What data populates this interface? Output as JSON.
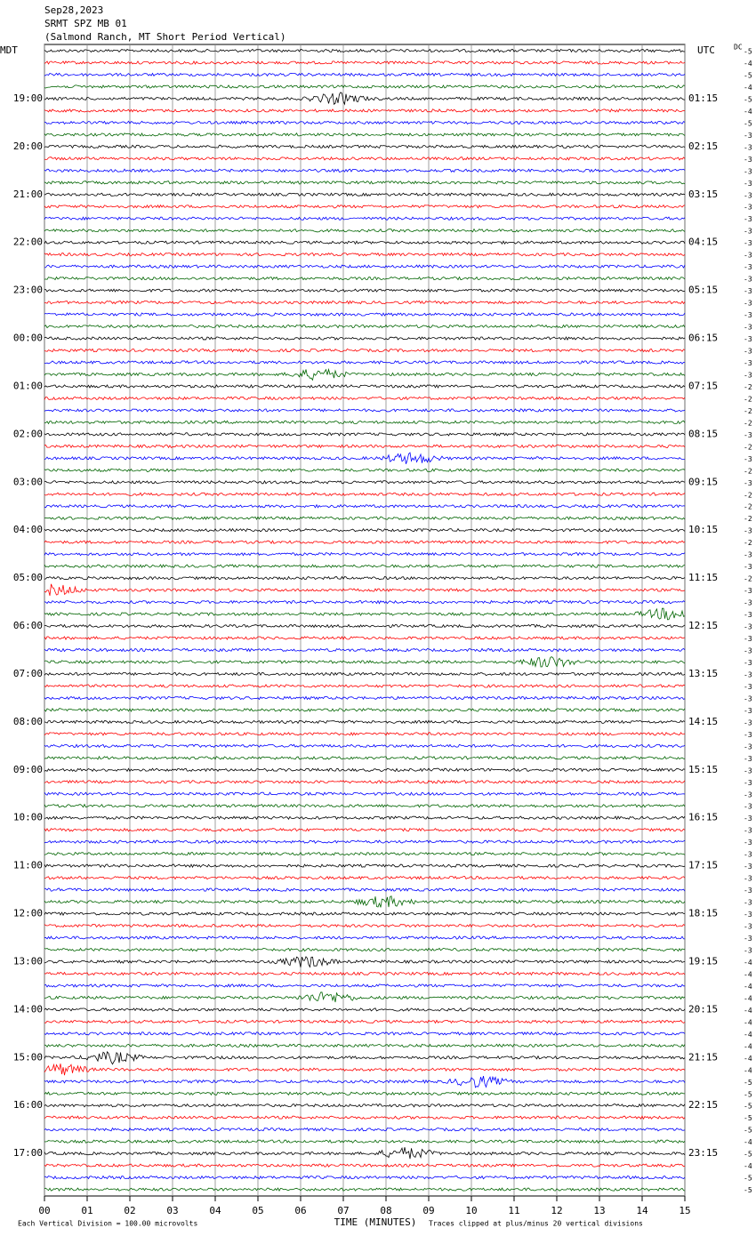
{
  "chart_data": {
    "type": "helicorder",
    "title": [
      "Sep28,2023",
      "SRMT SPZ MB 01",
      "(Salmond Ranch, MT Short Period Vertical)"
    ],
    "left_zone": "MDT",
    "right_zone": "UTC",
    "dc_label": "DC",
    "left_times": [
      "19:00",
      "20:00",
      "21:00",
      "22:00",
      "23:00",
      "00:00",
      "01:00",
      "02:00",
      "03:00",
      "04:00",
      "05:00",
      "06:00",
      "07:00",
      "08:00",
      "09:00",
      "10:00",
      "11:00",
      "12:00",
      "13:00",
      "14:00",
      "15:00",
      "16:00",
      "17:00"
    ],
    "right_times": [
      "01:15",
      "02:15",
      "03:15",
      "04:15",
      "05:15",
      "06:15",
      "07:15",
      "08:15",
      "09:15",
      "10:15",
      "11:15",
      "12:15",
      "13:15",
      "14:15",
      "15:15",
      "16:15",
      "17:15",
      "18:15",
      "19:15",
      "20:15",
      "21:15",
      "22:15",
      "23:15"
    ],
    "trace_colors": [
      "#000000",
      "#ff0000",
      "#0000ff",
      "#006400"
    ],
    "dc_offsets": [
      -5,
      -4,
      -5,
      -4,
      -5,
      -4,
      -5,
      -3,
      -3,
      -3,
      -3,
      -3,
      -3,
      -3,
      -3,
      -3,
      -3,
      -3,
      -3,
      -3,
      -3,
      -3,
      -3,
      -3,
      -3,
      -3,
      -3,
      -3,
      -2,
      -2,
      -2,
      -2,
      -3,
      -2,
      -3,
      -2,
      -3,
      -2,
      -2,
      -2,
      -3,
      -2,
      -3,
      -3,
      -2,
      -3,
      -3,
      -3,
      -3,
      -3,
      -3,
      -3,
      -3,
      -3,
      -3,
      -3,
      -3,
      -3,
      -3,
      -3,
      -3,
      -3,
      -3,
      -3,
      -3,
      -3,
      -3,
      -3,
      -3,
      -3,
      -3,
      -3,
      -3,
      -3,
      -3,
      -3,
      -4,
      -4,
      -4,
      -4,
      -4,
      -4,
      -4,
      -4,
      -4,
      -4,
      -5,
      -5,
      -5,
      -5,
      -5,
      -4,
      -5,
      -4,
      -5,
      -5
    ],
    "x_label": "TIME (MINUTES)",
    "xlim": [
      0,
      15
    ],
    "xticks": [
      {
        "value": 0,
        "label": "00"
      },
      {
        "value": 1,
        "label": "01"
      },
      {
        "value": 2,
        "label": "02"
      },
      {
        "value": 3,
        "label": "03"
      },
      {
        "value": 4,
        "label": "04"
      },
      {
        "value": 5,
        "label": "05"
      },
      {
        "value": 6,
        "label": "06"
      },
      {
        "value": 7,
        "label": "07"
      },
      {
        "value": 8,
        "label": "08"
      },
      {
        "value": 9,
        "label": "09"
      },
      {
        "value": 10,
        "label": "10"
      },
      {
        "value": 11,
        "label": "11"
      },
      {
        "value": 12,
        "label": "12"
      },
      {
        "value": 13,
        "label": "13"
      },
      {
        "value": 14,
        "label": "14"
      },
      {
        "value": 15,
        "label": "15"
      }
    ],
    "footer_left": "Each Vertical Division =  100.00 microvolts",
    "footer_right": "Traces clipped at plus/minus 20 vertical divisions",
    "grid": true
  }
}
